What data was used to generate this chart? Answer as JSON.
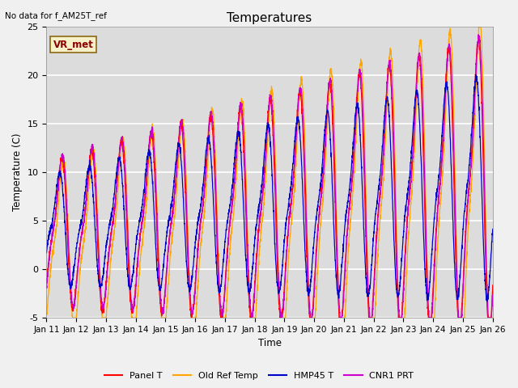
{
  "title": "Temperatures",
  "xlabel": "Time",
  "ylabel": "Temperature (C)",
  "top_left_text": "No data for f_AM25T_ref",
  "legend_box_text": "VR_met",
  "ylim": [
    -5,
    25
  ],
  "xlim": [
    0,
    15
  ],
  "x_tick_labels": [
    "Jan 11",
    "Jan 12",
    "Jan 13",
    "Jan 14",
    "Jan 15",
    "Jan 16",
    "Jan 17",
    "Jan 18",
    "Jan 19",
    "Jan 20",
    "Jan 21",
    "Jan 22",
    "Jan 23",
    "Jan 24",
    "Jan 25",
    "Jan 26"
  ],
  "x_ticks": [
    0,
    1,
    2,
    3,
    4,
    5,
    6,
    7,
    8,
    9,
    10,
    11,
    12,
    13,
    14,
    15
  ],
  "yticks": [
    -5,
    0,
    5,
    10,
    15,
    20,
    25
  ],
  "colors": {
    "Panel T": "#ff0000",
    "Old Ref Temp": "#ffa500",
    "HMP45 T": "#0000cc",
    "CNR1 PRT": "#cc00cc"
  },
  "bg_color": "#dcdcdc",
  "fig_bg": "#f0f0f0",
  "grid_color": "#ffffff",
  "n_per_day": 200,
  "n_days": 15
}
